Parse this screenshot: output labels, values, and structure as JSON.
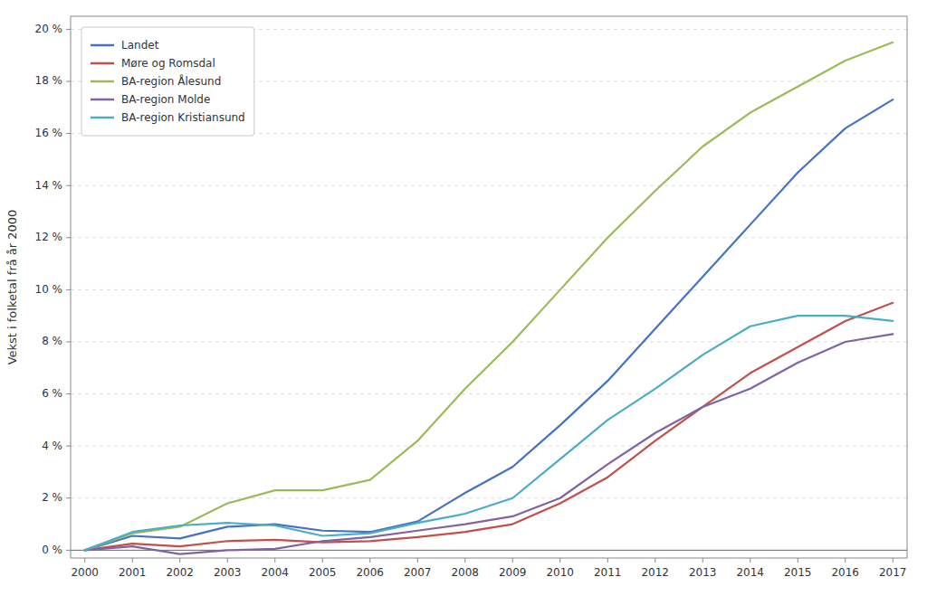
{
  "chart_data": {
    "type": "line",
    "ylabel": "Vekst i folketal frå år 2000",
    "x": [
      2000,
      2001,
      2002,
      2003,
      2004,
      2005,
      2006,
      2007,
      2008,
      2009,
      2010,
      2011,
      2012,
      2013,
      2014,
      2015,
      2016,
      2017
    ],
    "xlim": [
      1999.7,
      2017.3
    ],
    "xticks": [
      2000,
      2001,
      2002,
      2003,
      2004,
      2005,
      2006,
      2007,
      2008,
      2009,
      2010,
      2011,
      2012,
      2013,
      2014,
      2015,
      2016,
      2017
    ],
    "ylim": [
      -0.3,
      20.5
    ],
    "yticks": [
      {
        "value": 0,
        "label": "0 %"
      },
      {
        "value": 2,
        "label": "2 %"
      },
      {
        "value": 4,
        "label": "4 %"
      },
      {
        "value": 6,
        "label": "6 %"
      },
      {
        "value": 8,
        "label": "8 %"
      },
      {
        "value": 10,
        "label": "10 %"
      },
      {
        "value": 12,
        "label": "12 %"
      },
      {
        "value": 14,
        "label": "14 %"
      },
      {
        "value": 16,
        "label": "16 %"
      },
      {
        "value": 18,
        "label": "18 %"
      },
      {
        "value": 20,
        "label": "20 %"
      }
    ],
    "grid": true,
    "legend": "upper left",
    "series": [
      {
        "name": "Landet",
        "color": "#4472C4",
        "values": [
          0.0,
          0.55,
          0.45,
          0.9,
          1.0,
          0.75,
          0.7,
          1.1,
          2.2,
          3.2,
          4.8,
          6.5,
          8.5,
          10.5,
          12.5,
          14.5,
          16.2,
          17.3
        ]
      },
      {
        "name": "Møre og Romsdal",
        "color": "#C0504D",
        "values": [
          0.0,
          0.25,
          0.15,
          0.35,
          0.4,
          0.3,
          0.35,
          0.5,
          0.7,
          1.0,
          1.8,
          2.8,
          4.2,
          5.5,
          6.8,
          7.8,
          8.8,
          9.5
        ]
      },
      {
        "name": "BA-region Ålesund",
        "color": "#9BBB59",
        "values": [
          0.0,
          0.65,
          0.9,
          1.8,
          2.3,
          2.3,
          2.7,
          4.2,
          6.2,
          8.0,
          10.0,
          12.0,
          13.8,
          15.5,
          16.8,
          17.8,
          18.8,
          19.5
        ]
      },
      {
        "name": "BA-region Molde",
        "color": "#8064A2",
        "values": [
          0.0,
          0.15,
          -0.15,
          0.0,
          0.05,
          0.35,
          0.5,
          0.75,
          1.0,
          1.3,
          2.0,
          3.3,
          4.5,
          5.5,
          6.2,
          7.2,
          8.0,
          8.3
        ]
      },
      {
        "name": "BA-region Kristiansund",
        "color": "#4BACC6",
        "values": [
          0.0,
          0.7,
          0.95,
          1.05,
          0.95,
          0.55,
          0.65,
          1.05,
          1.4,
          2.0,
          3.5,
          5.0,
          6.2,
          7.5,
          8.6,
          9.0,
          9.0,
          8.8
        ]
      }
    ]
  }
}
